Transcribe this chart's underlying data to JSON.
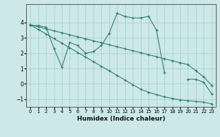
{
  "x_values": [
    0,
    1,
    2,
    3,
    4,
    5,
    6,
    7,
    8,
    9,
    10,
    11,
    12,
    13,
    14,
    15,
    16,
    17,
    18,
    19,
    20,
    21,
    22,
    23
  ],
  "line_zigzag": [
    3.8,
    3.8,
    3.7,
    2.3,
    1.1,
    2.7,
    2.5,
    2.0,
    2.1,
    2.5,
    3.3,
    4.6,
    4.4,
    4.3,
    4.3,
    4.4,
    3.5,
    0.75,
    null,
    null,
    0.3,
    0.3,
    0.1,
    -0.65
  ],
  "line_upper": [
    3.85,
    3.72,
    3.59,
    3.46,
    3.33,
    3.2,
    3.07,
    2.94,
    2.81,
    2.68,
    2.55,
    2.42,
    2.29,
    2.16,
    2.03,
    1.9,
    1.77,
    1.64,
    1.51,
    1.38,
    1.25,
    0.85,
    0.45,
    -0.1
  ],
  "line_lower": [
    3.85,
    3.55,
    3.25,
    2.95,
    2.65,
    2.35,
    2.05,
    1.75,
    1.45,
    1.15,
    0.85,
    0.55,
    0.25,
    -0.05,
    -0.35,
    -0.55,
    -0.7,
    -0.85,
    -0.95,
    -1.05,
    -1.1,
    -1.15,
    -1.2,
    -1.3
  ],
  "color": "#2e7d6e",
  "bg_color": "#cce8e8",
  "grid_color": "#aacfcf",
  "xlabel": "Humidex (Indice chaleur)",
  "ylim": [
    -1.5,
    5.2
  ],
  "xlim": [
    -0.5,
    23.5
  ],
  "yticks": [
    -1,
    0,
    1,
    2,
    3,
    4
  ],
  "xticks": [
    0,
    1,
    2,
    3,
    4,
    5,
    6,
    7,
    8,
    9,
    10,
    11,
    12,
    13,
    14,
    15,
    16,
    17,
    18,
    19,
    20,
    21,
    22,
    23
  ]
}
